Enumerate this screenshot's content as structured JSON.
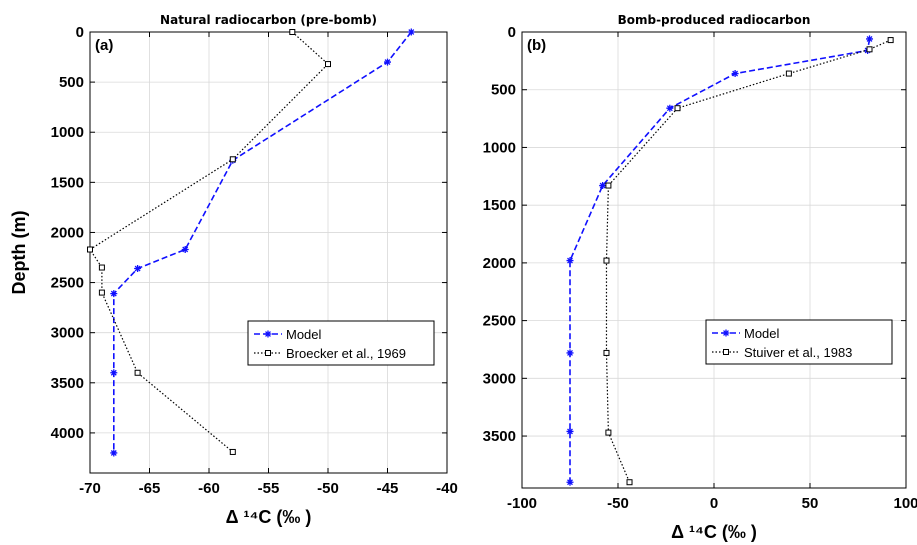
{
  "chart_data": [
    {
      "type": "line",
      "panel_label": "(a)",
      "title": "Natural radiocarbon (pre-bomb)",
      "xlabel": "Δ ¹⁴C (‰ )",
      "ylabel": "Depth (m)",
      "xlim": [
        -70,
        -40
      ],
      "ylim": [
        0,
        4400
      ],
      "y_inverted": true,
      "grid": true,
      "xticks": [
        -70,
        -65,
        -60,
        -55,
        -50,
        -45,
        -40
      ],
      "yticks": [
        0,
        500,
        1000,
        1500,
        2000,
        2500,
        3000,
        3500,
        4000
      ],
      "legend_position": "lower-right",
      "series": [
        {
          "name": "Model",
          "color": "#1010ff",
          "line": "dashed",
          "marker": "star",
          "points": [
            [
              -43,
              0
            ],
            [
              -45,
              300
            ],
            [
              -58,
              1280
            ],
            [
              -62,
              2170
            ],
            [
              -66,
              2360
            ],
            [
              -68,
              2610
            ],
            [
              -68,
              3400
            ],
            [
              -68,
              4200
            ]
          ]
        },
        {
          "name": "Broecker et al., 1969",
          "color": "#000000",
          "line": "dotted",
          "marker": "square",
          "points": [
            [
              -53,
              0
            ],
            [
              -50,
              320
            ],
            [
              -58,
              1270
            ],
            [
              -70,
              2170
            ],
            [
              -69,
              2350
            ],
            [
              -69,
              2600
            ],
            [
              -66,
              3400
            ],
            [
              -58,
              4190
            ]
          ]
        }
      ]
    },
    {
      "type": "line",
      "panel_label": "(b)",
      "title": "Bomb-produced radiocarbon",
      "xlabel": "Δ ¹⁴C (‰ )",
      "ylabel": "",
      "xlim": [
        -100,
        100
      ],
      "ylim": [
        0,
        3950
      ],
      "y_inverted": true,
      "grid": true,
      "xticks": [
        -100,
        -50,
        0,
        50,
        100
      ],
      "yticks": [
        0,
        500,
        1000,
        1500,
        2000,
        2500,
        3000,
        3500
      ],
      "legend_position": "lower-right",
      "series": [
        {
          "name": "Model",
          "color": "#1010ff",
          "line": "dashed",
          "marker": "star",
          "points": [
            [
              81,
              60
            ],
            [
              80,
              160
            ],
            [
              11,
              360
            ],
            [
              -23,
              660
            ],
            [
              -58,
              1330
            ],
            [
              -75,
              1980
            ],
            [
              -75,
              2780
            ],
            [
              -75,
              3460
            ],
            [
              -75,
              3900
            ]
          ]
        },
        {
          "name": "Stuiver et al., 1983",
          "color": "#000000",
          "line": "dotted",
          "marker": "square",
          "points": [
            [
              92,
              70
            ],
            [
              81,
              150
            ],
            [
              39,
              360
            ],
            [
              -19,
              660
            ],
            [
              -55,
              1330
            ],
            [
              -56,
              1980
            ],
            [
              -56,
              2780
            ],
            [
              -55,
              3470
            ],
            [
              -44,
              3900
            ]
          ]
        }
      ]
    }
  ]
}
